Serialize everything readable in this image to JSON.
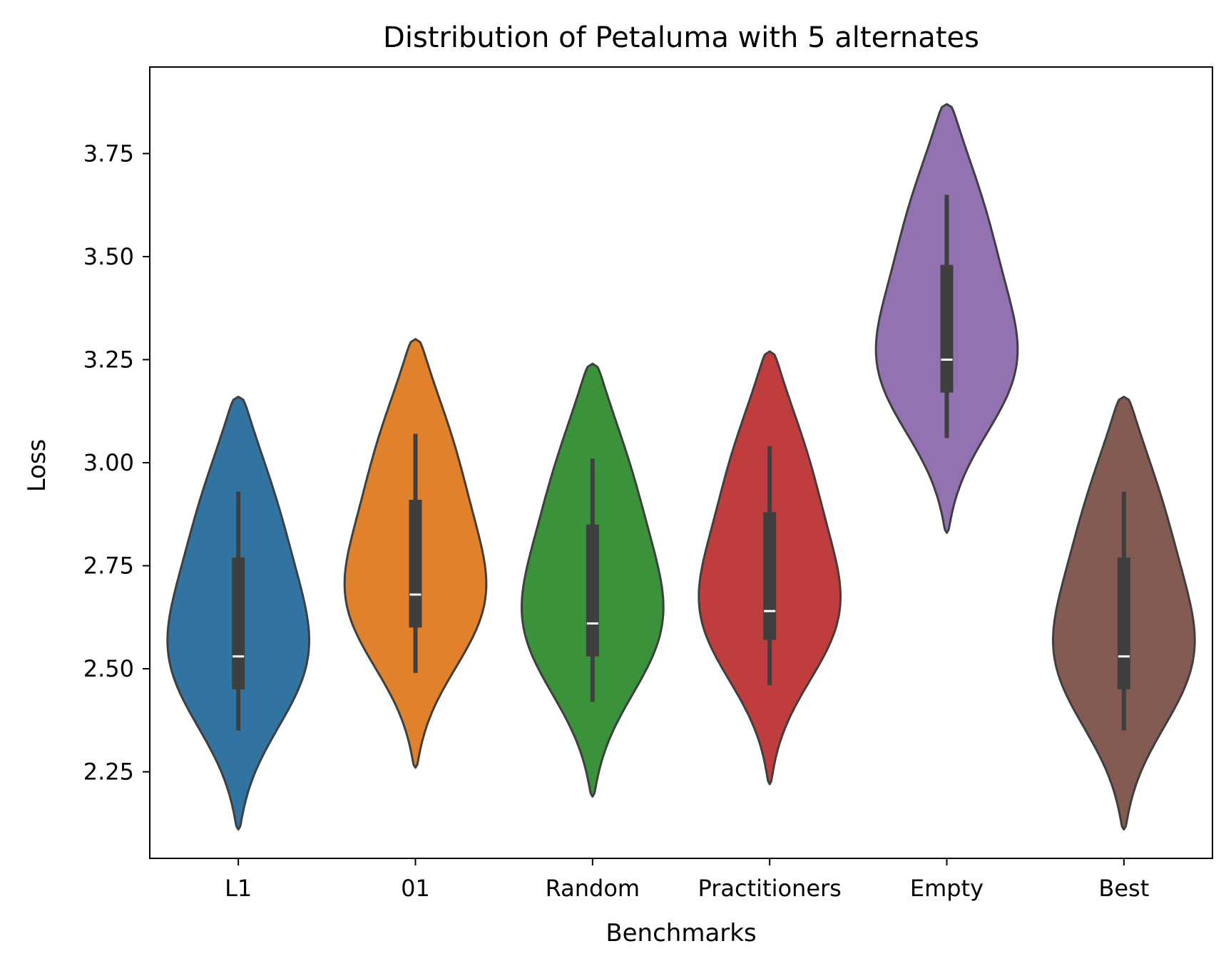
{
  "chart_data": {
    "type": "violin",
    "title": "Distribution of Petaluma with 5 alternates",
    "xlabel": "Benchmarks",
    "ylabel": "Loss",
    "ylim": [
      2.04,
      3.96
    ],
    "yticks": [
      "2.25",
      "2.50",
      "2.75",
      "3.00",
      "3.25",
      "3.50",
      "3.75"
    ],
    "ytick_values": [
      2.25,
      2.5,
      2.75,
      3.0,
      3.25,
      3.5,
      3.75
    ],
    "grid": false,
    "categories": [
      "L1",
      "01",
      "Random",
      "Practitioners",
      "Empty",
      "Best"
    ],
    "series": [
      {
        "category": "L1",
        "color": "#3274a1",
        "min": 2.35,
        "q1": 2.45,
        "median": 2.53,
        "q3": 2.77,
        "max": 2.93,
        "kde_low": 2.11,
        "kde_high": 3.16,
        "density_peak": 2.5
      },
      {
        "category": "01",
        "color": "#e1812c",
        "min": 2.49,
        "q1": 2.6,
        "median": 2.68,
        "q3": 2.91,
        "max": 3.07,
        "kde_low": 2.26,
        "kde_high": 3.3,
        "density_peak": 2.64
      },
      {
        "category": "Random",
        "color": "#3a923a",
        "min": 2.42,
        "q1": 2.53,
        "median": 2.61,
        "q3": 2.85,
        "max": 3.01,
        "kde_low": 2.19,
        "kde_high": 3.24,
        "density_peak": 2.58
      },
      {
        "category": "Practitioners",
        "color": "#c03d3e",
        "min": 2.46,
        "q1": 2.57,
        "median": 2.64,
        "q3": 2.88,
        "max": 3.04,
        "kde_low": 2.22,
        "kde_high": 3.27,
        "density_peak": 2.61
      },
      {
        "category": "Empty",
        "color": "#9372b2",
        "min": 3.06,
        "q1": 3.17,
        "median": 3.25,
        "q3": 3.48,
        "max": 3.65,
        "kde_low": 2.83,
        "kde_high": 3.87,
        "density_peak": 3.21
      },
      {
        "category": "Best",
        "color": "#845b53",
        "min": 2.35,
        "q1": 2.45,
        "median": 2.53,
        "q3": 2.77,
        "max": 2.93,
        "kde_low": 2.11,
        "kde_high": 3.16,
        "density_peak": 2.5
      }
    ]
  }
}
